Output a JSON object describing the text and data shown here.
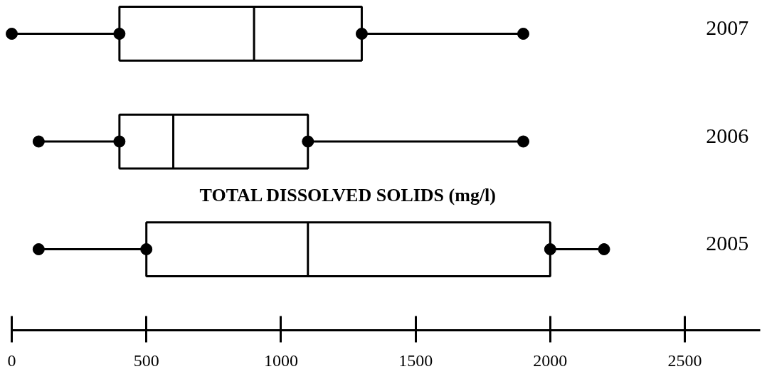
{
  "chart_data": {
    "type": "box",
    "orientation": "horizontal",
    "title": "TOTAL DISSOLVED SOLIDS (mg/l)",
    "categories": [
      "2007",
      "2006",
      "2005"
    ],
    "series": [
      {
        "color": "#000000",
        "boxes": [
          {
            "low": 0,
            "q1": 400,
            "median": 900,
            "q3": 1300,
            "high": 1900
          },
          {
            "low": 100,
            "q1": 400,
            "median": 600,
            "q3": 1100,
            "high": 1900
          },
          {
            "low": 100,
            "q1": 500,
            "median": 1100,
            "q3": 2000,
            "high": 2200
          }
        ]
      },
      {
        "type": "scatter",
        "color": "#000000",
        "values": [
          0,
          100,
          100
        ]
      },
      {
        "type": "scatter",
        "color": "#000000",
        "values": [
          400,
          400,
          500
        ]
      },
      {
        "type": "scatter",
        "color": "#000000",
        "values": [
          1300,
          1100,
          2000
        ]
      },
      {
        "type": "scatter",
        "color": "#000000",
        "values": [
          1900,
          1900,
          2200
        ]
      }
    ],
    "xlim": [
      0,
      2780
    ],
    "xticks": [
      0,
      500,
      1000,
      1500,
      2000,
      2500
    ],
    "grid": false,
    "marker": "circle"
  }
}
